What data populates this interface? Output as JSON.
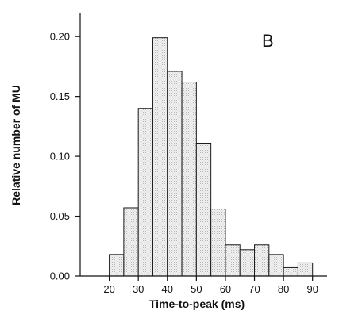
{
  "chart_data": {
    "type": "bar",
    "panel_label": "B",
    "xlabel": "Time-to-peak (ms)",
    "ylabel": "Relative number of MU",
    "xlim": [
      10,
      95
    ],
    "ylim": [
      0,
      0.22
    ],
    "bin_width": 5,
    "bins": [
      {
        "start": 20,
        "value": 0.018
      },
      {
        "start": 25,
        "value": 0.057
      },
      {
        "start": 30,
        "value": 0.14
      },
      {
        "start": 35,
        "value": 0.199
      },
      {
        "start": 40,
        "value": 0.171
      },
      {
        "start": 45,
        "value": 0.162
      },
      {
        "start": 50,
        "value": 0.111
      },
      {
        "start": 55,
        "value": 0.056
      },
      {
        "start": 60,
        "value": 0.026
      },
      {
        "start": 65,
        "value": 0.022
      },
      {
        "start": 70,
        "value": 0.026
      },
      {
        "start": 75,
        "value": 0.018
      },
      {
        "start": 80,
        "value": 0.007
      },
      {
        "start": 85,
        "value": 0.011
      }
    ],
    "x_ticks": [
      20,
      30,
      40,
      50,
      60,
      70,
      80,
      90
    ],
    "x_tick_labels": [
      "20",
      "30",
      "40",
      "50",
      "60",
      "70",
      "80",
      "90"
    ],
    "y_ticks": [
      0,
      0.05,
      0.1,
      0.15,
      0.2
    ],
    "y_tick_labels": [
      "0.00",
      "0.05",
      "0.10",
      "0.15",
      "0.20"
    ],
    "grid": false,
    "bar_fill": "#e9e9e9",
    "bar_edge": "#1a1a1a"
  }
}
